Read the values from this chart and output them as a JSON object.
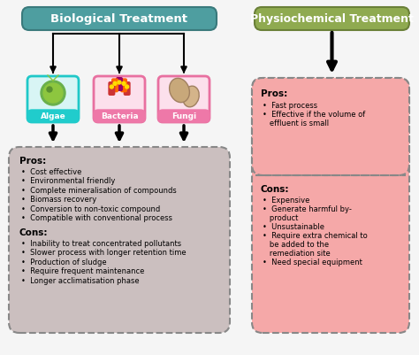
{
  "bio_title": "Biological Treatment",
  "bio_title_bg": "#4e9ea0",
  "bio_title_border": "#3a7a7c",
  "bio_box_bg": "#cbbfbf",
  "org_labels": [
    "Algae",
    "Bacteria",
    "Fungi"
  ],
  "org_box_bgs": [
    "#d8f5f5",
    "#fce0ec",
    "#fce0ec"
  ],
  "org_box_borders": [
    "#20c8c8",
    "#e870a0",
    "#e870a0"
  ],
  "org_label_bgs": [
    "#20cccc",
    "#ee78a8",
    "#ee78a8"
  ],
  "bio_pros_title": "Pros:",
  "bio_pros": [
    "Cost effective",
    "Environmental friendly",
    "Complete mineralisation of compounds",
    "Biomass recovery",
    "Conversion to non-toxic compound",
    "Compatible with conventional process"
  ],
  "bio_cons_title": "Cons:",
  "bio_cons": [
    "Inability to treat concentrated pollutants",
    "Slower process with longer retention time",
    "Production of sludge",
    "Require frequent maintenance",
    "Longer acclimatisation phase"
  ],
  "phys_title": "Physiochemical Treatment",
  "phys_title_bg": "#8faa50",
  "phys_title_border": "#6a8038",
  "phys_box_bg": "#f5a8a8",
  "phys_pros_title": "Pros:",
  "phys_pros": [
    "Fast process",
    "Effective if the volume of\neffluent is small"
  ],
  "phys_cons_title": "Cons:",
  "phys_cons": [
    "Expensive",
    "Generate harmful by-\nproduct",
    "Unsustainable",
    "Require extra chemical to\nbe added to the\nremediation site",
    "Need special equipment"
  ],
  "bg_color": "#f5f5f5",
  "border_color": "#888888",
  "bullet": "•"
}
